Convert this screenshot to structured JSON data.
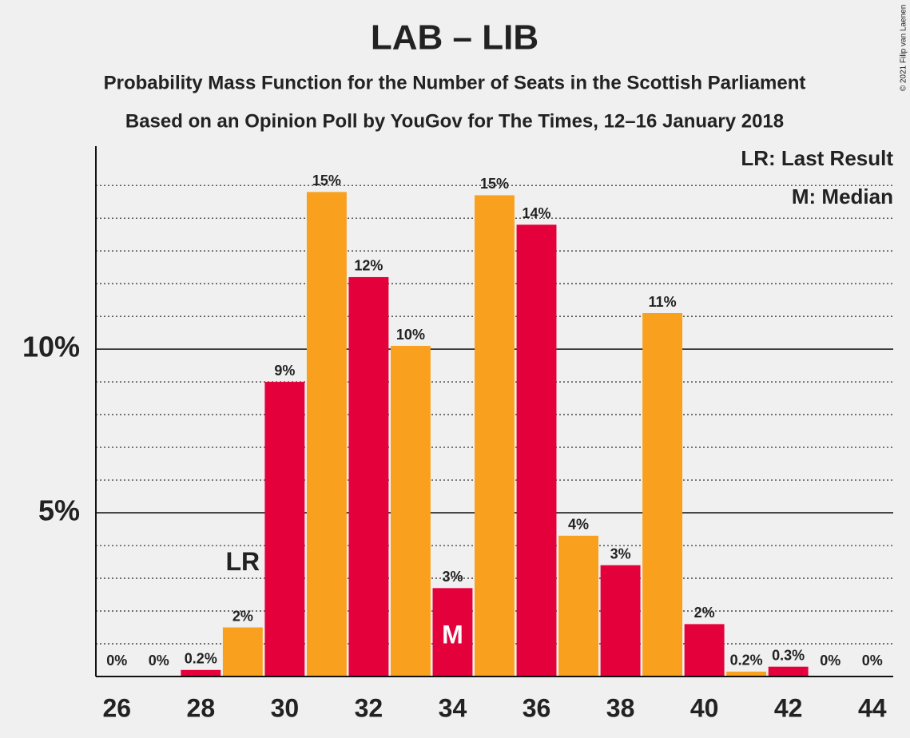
{
  "chart_data": {
    "type": "bar",
    "title": "LAB – LIB",
    "subtitle": [
      "Probability Mass Function for the Number of Seats in the Scottish Parliament",
      "Based on an Opinion Poll by YouGov for The Times, 12–16 January 2018"
    ],
    "x": [
      26,
      27,
      28,
      29,
      30,
      31,
      32,
      33,
      34,
      35,
      36,
      37,
      38,
      39,
      40,
      41,
      42,
      43,
      44
    ],
    "values": [
      0,
      0,
      0.2,
      1.5,
      9.0,
      14.8,
      12.2,
      10.1,
      2.7,
      14.7,
      13.8,
      4.3,
      3.4,
      11.1,
      1.6,
      0.15,
      0.3,
      0,
      0
    ],
    "value_labels": [
      "0%",
      "0%",
      "0.2%",
      "2%",
      "9%",
      "15%",
      "12%",
      "10%",
      "3%",
      "15%",
      "14%",
      "4%",
      "3%",
      "11%",
      "2%",
      "0.2%",
      "0.3%",
      "0%",
      "0%"
    ],
    "colors": [
      "#e4003b",
      "#f9a01e",
      "#e4003b",
      "#f9a01e",
      "#e4003b",
      "#f9a01e",
      "#e4003b",
      "#f9a01e",
      "#e4003b",
      "#f9a01e",
      "#e4003b",
      "#f9a01e",
      "#e4003b",
      "#f9a01e",
      "#e4003b",
      "#f9a01e",
      "#e4003b",
      "#f9a01e",
      "#e4003b"
    ],
    "xlim": [
      25.5,
      44.5
    ],
    "xticks": [
      26,
      28,
      30,
      32,
      34,
      36,
      38,
      40,
      42,
      44
    ],
    "ylim": [
      0,
      16.2
    ],
    "yticks": [
      {
        "value": 5,
        "label": "5%"
      },
      {
        "value": 10,
        "label": "10%"
      }
    ],
    "minor_yticks": [
      1,
      2,
      3,
      4,
      6,
      7,
      8,
      9,
      11,
      12,
      13,
      14,
      15
    ],
    "last_result": {
      "label": "LR",
      "x": 29
    },
    "median": {
      "label": "M",
      "x": 34
    },
    "legend": [
      "LR: Last Result",
      "M: Median"
    ],
    "credit": "© 2021 Filip van Laenen"
  }
}
